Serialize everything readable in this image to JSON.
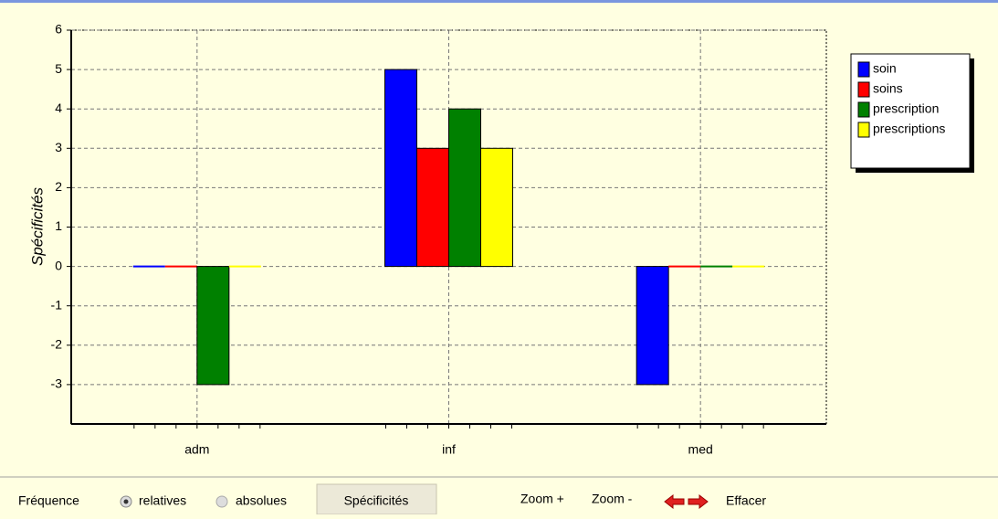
{
  "chart_data": {
    "type": "bar",
    "y_label": "Spécificités",
    "categories": [
      "adm",
      "inf",
      "med"
    ],
    "series": [
      {
        "name": "soin",
        "color": "#0000ff",
        "values": [
          0,
          5,
          -3
        ]
      },
      {
        "name": "soins",
        "color": "#ff0000",
        "values": [
          0,
          3,
          0
        ]
      },
      {
        "name": "prescription",
        "color": "#008000",
        "values": [
          -3,
          4,
          0
        ]
      },
      {
        "name": "prescriptions",
        "color": "#ffff00",
        "values": [
          0,
          3,
          0
        ]
      }
    ],
    "ylim": [
      -4,
      6
    ],
    "yticks": [
      -3,
      -2,
      -1,
      0,
      1,
      2,
      3,
      4,
      5,
      6
    ],
    "grid": true,
    "legend": "top-right"
  },
  "toolbar": {
    "frequency_label": "Fréquence",
    "options": [
      "relatives",
      "absolues"
    ],
    "selected": "relatives",
    "button": "Spécificités",
    "zoom_in": "Zoom +",
    "zoom_out": "Zoom -",
    "clear": "Effacer"
  }
}
